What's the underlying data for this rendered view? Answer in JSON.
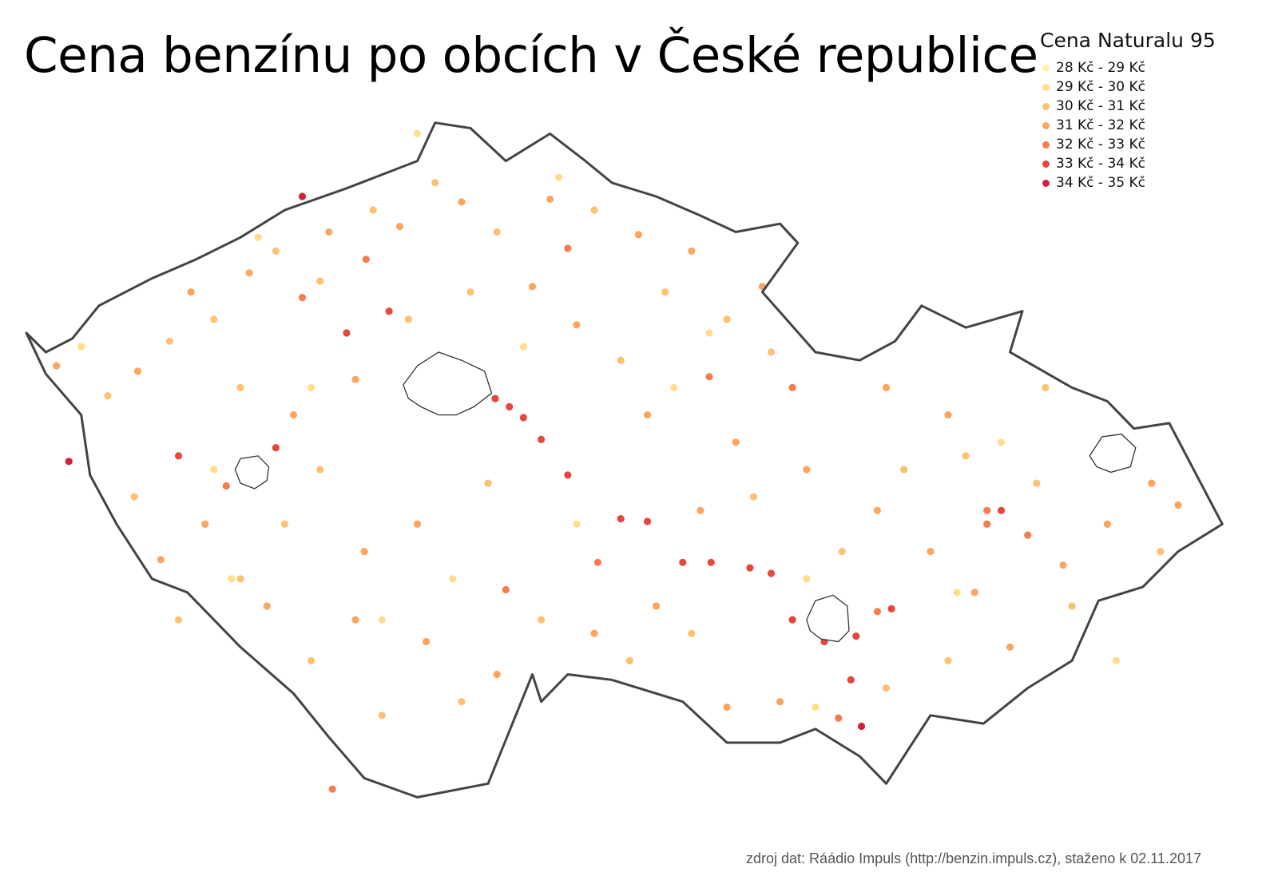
{
  "title": "Cena benzínu po obcích v České republice",
  "legend": {
    "title": "Cena Naturalu 95",
    "items": [
      {
        "label": "28 Kč - 29 Kč",
        "color": "#fff3a8"
      },
      {
        "label": "29 Kč - 30 Kč",
        "color": "#fede8d"
      },
      {
        "label": "30 Kč - 31 Kč",
        "color": "#fdc173"
      },
      {
        "label": "31 Kč - 32 Kč",
        "color": "#fca560"
      },
      {
        "label": "32 Kč - 33 Kč",
        "color": "#f57d4c"
      },
      {
        "label": "33 Kč - 34 Kč",
        "color": "#e5473c"
      },
      {
        "label": "34 Kč - 35 Kč",
        "color": "#d4203a"
      }
    ]
  },
  "source": "zdroj dat: Ráádio Impuls (http://benzin.impuls.cz), staženo k 02.11.2017",
  "map_data": {
    "projection": "simple lon/lat, lat scaled by cos(49.8°)",
    "bounds": {
      "lon": [
        12.09,
        18.86
      ],
      "lat": [
        48.55,
        51.06
      ]
    },
    "country_outline": [
      [
        12.09,
        50.25
      ],
      [
        12.2,
        50.18
      ],
      [
        12.35,
        50.23
      ],
      [
        12.5,
        50.35
      ],
      [
        12.8,
        50.45
      ],
      [
        13.05,
        50.52
      ],
      [
        13.3,
        50.6
      ],
      [
        13.55,
        50.7
      ],
      [
        13.9,
        50.78
      ],
      [
        14.3,
        50.88
      ],
      [
        14.4,
        51.02
      ],
      [
        14.6,
        51.0
      ],
      [
        14.8,
        50.88
      ],
      [
        15.05,
        50.98
      ],
      [
        15.25,
        50.88
      ],
      [
        15.4,
        50.8
      ],
      [
        15.65,
        50.75
      ],
      [
        15.9,
        50.68
      ],
      [
        16.1,
        50.62
      ],
      [
        16.35,
        50.65
      ],
      [
        16.45,
        50.58
      ],
      [
        16.25,
        50.4
      ],
      [
        16.55,
        50.18
      ],
      [
        16.8,
        50.15
      ],
      [
        17.0,
        50.22
      ],
      [
        17.15,
        50.35
      ],
      [
        17.4,
        50.27
      ],
      [
        17.72,
        50.33
      ],
      [
        17.65,
        50.18
      ],
      [
        18.0,
        50.05
      ],
      [
        18.2,
        50.0
      ],
      [
        18.35,
        49.9
      ],
      [
        18.55,
        49.92
      ],
      [
        18.85,
        49.55
      ],
      [
        18.6,
        49.45
      ],
      [
        18.4,
        49.32
      ],
      [
        18.15,
        49.27
      ],
      [
        18.0,
        49.05
      ],
      [
        17.75,
        48.95
      ],
      [
        17.5,
        48.82
      ],
      [
        17.2,
        48.85
      ],
      [
        17.1,
        48.75
      ],
      [
        16.95,
        48.6
      ],
      [
        16.8,
        48.7
      ],
      [
        16.55,
        48.8
      ],
      [
        16.35,
        48.75
      ],
      [
        16.05,
        48.75
      ],
      [
        15.8,
        48.9
      ],
      [
        15.4,
        48.98
      ],
      [
        15.15,
        49.0
      ],
      [
        15.0,
        48.9
      ],
      [
        14.95,
        49.0
      ],
      [
        14.7,
        48.6
      ],
      [
        14.3,
        48.55
      ],
      [
        14.0,
        48.62
      ],
      [
        13.8,
        48.77
      ],
      [
        13.6,
        48.93
      ],
      [
        13.3,
        49.1
      ],
      [
        13.0,
        49.3
      ],
      [
        12.8,
        49.35
      ],
      [
        12.6,
        49.55
      ],
      [
        12.45,
        49.73
      ],
      [
        12.4,
        49.95
      ],
      [
        12.2,
        50.1
      ]
    ],
    "city_outlines": [
      {
        "name": "Praha",
        "points": [
          [
            14.22,
            50.06
          ],
          [
            14.3,
            50.13
          ],
          [
            14.42,
            50.18
          ],
          [
            14.55,
            50.15
          ],
          [
            14.68,
            50.11
          ],
          [
            14.72,
            50.03
          ],
          [
            14.62,
            49.98
          ],
          [
            14.52,
            49.95
          ],
          [
            14.42,
            49.95
          ],
          [
            14.32,
            49.98
          ],
          [
            14.25,
            50.01
          ]
        ]
      },
      {
        "name": "Plzeň",
        "points": [
          [
            13.27,
            49.75
          ],
          [
            13.3,
            49.79
          ],
          [
            13.4,
            49.8
          ],
          [
            13.46,
            49.76
          ],
          [
            13.45,
            49.71
          ],
          [
            13.38,
            49.68
          ],
          [
            13.3,
            49.7
          ]
        ]
      },
      {
        "name": "Brno",
        "points": [
          [
            16.5,
            49.2
          ],
          [
            16.55,
            49.27
          ],
          [
            16.65,
            49.29
          ],
          [
            16.73,
            49.25
          ],
          [
            16.74,
            49.16
          ],
          [
            16.68,
            49.12
          ],
          [
            16.58,
            49.13
          ],
          [
            16.52,
            49.16
          ]
        ]
      },
      {
        "name": "Ostrava",
        "points": [
          [
            18.1,
            49.8
          ],
          [
            18.17,
            49.87
          ],
          [
            18.28,
            49.88
          ],
          [
            18.36,
            49.83
          ],
          [
            18.33,
            49.76
          ],
          [
            18.22,
            49.74
          ],
          [
            18.14,
            49.76
          ]
        ]
      }
    ],
    "stations": [
      {
        "lon": 13.65,
        "lat": 50.75,
        "band": 6
      },
      {
        "lon": 12.33,
        "lat": 49.78,
        "band": 6
      },
      {
        "lon": 16.81,
        "lat": 48.81,
        "band": 6
      },
      {
        "lon": 13.9,
        "lat": 50.25,
        "band": 5
      },
      {
        "lon": 14.14,
        "lat": 50.33,
        "band": 5
      },
      {
        "lon": 14.74,
        "lat": 50.01,
        "band": 5
      },
      {
        "lon": 14.82,
        "lat": 49.98,
        "band": 5
      },
      {
        "lon": 14.9,
        "lat": 49.94,
        "band": 5
      },
      {
        "lon": 15.0,
        "lat": 49.86,
        "band": 5
      },
      {
        "lon": 15.15,
        "lat": 49.73,
        "band": 5
      },
      {
        "lon": 15.45,
        "lat": 49.57,
        "band": 5
      },
      {
        "lon": 15.6,
        "lat": 49.56,
        "band": 5
      },
      {
        "lon": 15.8,
        "lat": 49.41,
        "band": 5
      },
      {
        "lon": 15.96,
        "lat": 49.41,
        "band": 5
      },
      {
        "lon": 16.18,
        "lat": 49.39,
        "band": 5
      },
      {
        "lon": 16.3,
        "lat": 49.37,
        "band": 5
      },
      {
        "lon": 16.42,
        "lat": 49.2,
        "band": 5
      },
      {
        "lon": 16.6,
        "lat": 49.12,
        "band": 5
      },
      {
        "lon": 16.98,
        "lat": 49.24,
        "band": 5
      },
      {
        "lon": 12.95,
        "lat": 49.8,
        "band": 5
      },
      {
        "lon": 13.5,
        "lat": 49.83,
        "band": 5
      },
      {
        "lon": 14.6,
        "lat": 50.1,
        "band": 5
      },
      {
        "lon": 16.78,
        "lat": 49.14,
        "band": 5
      },
      {
        "lon": 16.75,
        "lat": 48.98,
        "band": 5
      },
      {
        "lon": 17.6,
        "lat": 49.6,
        "band": 5
      },
      {
        "lon": 17.52,
        "lat": 49.6,
        "band": 4
      },
      {
        "lon": 16.9,
        "lat": 49.23,
        "band": 4
      },
      {
        "lon": 16.68,
        "lat": 48.84,
        "band": 4
      },
      {
        "lon": 13.65,
        "lat": 50.38,
        "band": 4
      },
      {
        "lon": 13.22,
        "lat": 49.69,
        "band": 4
      },
      {
        "lon": 15.32,
        "lat": 49.41,
        "band": 4
      },
      {
        "lon": 17.75,
        "lat": 49.51,
        "band": 4
      },
      {
        "lon": 15.15,
        "lat": 50.56,
        "band": 4
      },
      {
        "lon": 14.01,
        "lat": 50.52,
        "band": 4
      },
      {
        "lon": 15.95,
        "lat": 50.09,
        "band": 4
      },
      {
        "lon": 16.42,
        "lat": 50.05,
        "band": 4
      },
      {
        "lon": 13.82,
        "lat": 48.58,
        "band": 4
      },
      {
        "lon": 14.8,
        "lat": 49.31,
        "band": 4
      },
      {
        "lon": 17.52,
        "lat": 49.55,
        "band": 4
      },
      {
        "lon": 12.26,
        "lat": 50.13,
        "band": 3
      },
      {
        "lon": 12.72,
        "lat": 50.11,
        "band": 3
      },
      {
        "lon": 13.02,
        "lat": 50.4,
        "band": 3
      },
      {
        "lon": 13.35,
        "lat": 50.47,
        "band": 3
      },
      {
        "lon": 13.8,
        "lat": 50.62,
        "band": 3
      },
      {
        "lon": 14.2,
        "lat": 50.64,
        "band": 3
      },
      {
        "lon": 14.55,
        "lat": 50.73,
        "band": 3
      },
      {
        "lon": 15.05,
        "lat": 50.74,
        "band": 3
      },
      {
        "lon": 15.55,
        "lat": 50.61,
        "band": 3
      },
      {
        "lon": 15.85,
        "lat": 50.55,
        "band": 3
      },
      {
        "lon": 16.25,
        "lat": 50.42,
        "band": 3
      },
      {
        "lon": 13.95,
        "lat": 50.08,
        "band": 3
      },
      {
        "lon": 13.6,
        "lat": 49.95,
        "band": 3
      },
      {
        "lon": 13.1,
        "lat": 49.55,
        "band": 3
      },
      {
        "lon": 12.85,
        "lat": 49.42,
        "band": 3
      },
      {
        "lon": 13.45,
        "lat": 49.25,
        "band": 3
      },
      {
        "lon": 13.95,
        "lat": 49.2,
        "band": 3
      },
      {
        "lon": 14.35,
        "lat": 49.12,
        "band": 3
      },
      {
        "lon": 14.75,
        "lat": 49.0,
        "band": 3
      },
      {
        "lon": 15.3,
        "lat": 49.15,
        "band": 3
      },
      {
        "lon": 15.65,
        "lat": 49.25,
        "band": 3
      },
      {
        "lon": 15.9,
        "lat": 49.6,
        "band": 3
      },
      {
        "lon": 16.1,
        "lat": 49.85,
        "band": 3
      },
      {
        "lon": 16.5,
        "lat": 49.75,
        "band": 3
      },
      {
        "lon": 16.9,
        "lat": 49.6,
        "band": 3
      },
      {
        "lon": 17.2,
        "lat": 49.45,
        "band": 3
      },
      {
        "lon": 17.45,
        "lat": 49.3,
        "band": 3
      },
      {
        "lon": 17.65,
        "lat": 49.1,
        "band": 3
      },
      {
        "lon": 17.95,
        "lat": 49.4,
        "band": 3
      },
      {
        "lon": 18.2,
        "lat": 49.55,
        "band": 3
      },
      {
        "lon": 18.45,
        "lat": 49.7,
        "band": 3
      },
      {
        "lon": 18.6,
        "lat": 49.62,
        "band": 3
      },
      {
        "lon": 17.3,
        "lat": 49.95,
        "band": 3
      },
      {
        "lon": 16.95,
        "lat": 50.05,
        "band": 3
      },
      {
        "lon": 15.2,
        "lat": 50.28,
        "band": 3
      },
      {
        "lon": 14.95,
        "lat": 50.42,
        "band": 3
      },
      {
        "lon": 14.3,
        "lat": 49.55,
        "band": 3
      },
      {
        "lon": 14.0,
        "lat": 49.45,
        "band": 3
      },
      {
        "lon": 15.6,
        "lat": 49.95,
        "band": 3
      },
      {
        "lon": 16.35,
        "lat": 48.9,
        "band": 3
      },
      {
        "lon": 16.05,
        "lat": 48.88,
        "band": 3
      },
      {
        "lon": 12.55,
        "lat": 50.02,
        "band": 2
      },
      {
        "lon": 12.9,
        "lat": 50.22,
        "band": 2
      },
      {
        "lon": 13.15,
        "lat": 50.3,
        "band": 2
      },
      {
        "lon": 13.5,
        "lat": 50.55,
        "band": 2
      },
      {
        "lon": 13.75,
        "lat": 50.44,
        "band": 2
      },
      {
        "lon": 14.05,
        "lat": 50.7,
        "band": 2
      },
      {
        "lon": 14.4,
        "lat": 50.8,
        "band": 2
      },
      {
        "lon": 14.75,
        "lat": 50.62,
        "band": 2
      },
      {
        "lon": 15.3,
        "lat": 50.7,
        "band": 2
      },
      {
        "lon": 15.7,
        "lat": 50.4,
        "band": 2
      },
      {
        "lon": 16.05,
        "lat": 50.3,
        "band": 2
      },
      {
        "lon": 16.3,
        "lat": 50.18,
        "band": 2
      },
      {
        "lon": 13.3,
        "lat": 50.05,
        "band": 2
      },
      {
        "lon": 13.75,
        "lat": 49.75,
        "band": 2
      },
      {
        "lon": 12.7,
        "lat": 49.65,
        "band": 2
      },
      {
        "lon": 12.95,
        "lat": 49.2,
        "band": 2
      },
      {
        "lon": 13.3,
        "lat": 49.35,
        "band": 2
      },
      {
        "lon": 13.7,
        "lat": 49.05,
        "band": 2
      },
      {
        "lon": 14.1,
        "lat": 48.85,
        "band": 2
      },
      {
        "lon": 14.55,
        "lat": 48.9,
        "band": 2
      },
      {
        "lon": 15.0,
        "lat": 49.2,
        "band": 2
      },
      {
        "lon": 15.5,
        "lat": 49.05,
        "band": 2
      },
      {
        "lon": 15.85,
        "lat": 49.15,
        "band": 2
      },
      {
        "lon": 16.2,
        "lat": 49.65,
        "band": 2
      },
      {
        "lon": 16.7,
        "lat": 49.45,
        "band": 2
      },
      {
        "lon": 17.05,
        "lat": 49.75,
        "band": 2
      },
      {
        "lon": 17.4,
        "lat": 49.8,
        "band": 2
      },
      {
        "lon": 17.8,
        "lat": 49.7,
        "band": 2
      },
      {
        "lon": 18.0,
        "lat": 49.25,
        "band": 2
      },
      {
        "lon": 17.3,
        "lat": 49.05,
        "band": 2
      },
      {
        "lon": 16.95,
        "lat": 48.95,
        "band": 2
      },
      {
        "lon": 14.25,
        "lat": 50.3,
        "band": 2
      },
      {
        "lon": 14.6,
        "lat": 50.4,
        "band": 2
      },
      {
        "lon": 15.45,
        "lat": 50.15,
        "band": 2
      },
      {
        "lon": 14.7,
        "lat": 49.7,
        "band": 2
      },
      {
        "lon": 13.55,
        "lat": 49.55,
        "band": 2
      },
      {
        "lon": 18.5,
        "lat": 49.45,
        "band": 2
      },
      {
        "lon": 17.85,
        "lat": 50.05,
        "band": 2
      },
      {
        "lon": 12.4,
        "lat": 50.2,
        "band": 1
      },
      {
        "lon": 13.4,
        "lat": 50.6,
        "band": 1
      },
      {
        "lon": 14.3,
        "lat": 50.98,
        "band": 1
      },
      {
        "lon": 15.1,
        "lat": 50.82,
        "band": 1
      },
      {
        "lon": 13.15,
        "lat": 49.75,
        "band": 1
      },
      {
        "lon": 13.25,
        "lat": 49.35,
        "band": 1
      },
      {
        "lon": 14.1,
        "lat": 49.2,
        "band": 1
      },
      {
        "lon": 15.2,
        "lat": 49.55,
        "band": 1
      },
      {
        "lon": 15.95,
        "lat": 50.25,
        "band": 1
      },
      {
        "lon": 16.5,
        "lat": 49.35,
        "band": 1
      },
      {
        "lon": 17.35,
        "lat": 49.3,
        "band": 1
      },
      {
        "lon": 18.25,
        "lat": 49.05,
        "band": 1
      },
      {
        "lon": 14.5,
        "lat": 49.35,
        "band": 1
      },
      {
        "lon": 15.75,
        "lat": 50.05,
        "band": 1
      },
      {
        "lon": 16.55,
        "lat": 48.88,
        "band": 1
      },
      {
        "lon": 13.7,
        "lat": 50.05,
        "band": 1
      },
      {
        "lon": 14.9,
        "lat": 50.2,
        "band": 1
      },
      {
        "lon": 17.6,
        "lat": 49.85,
        "band": 1
      }
    ]
  }
}
